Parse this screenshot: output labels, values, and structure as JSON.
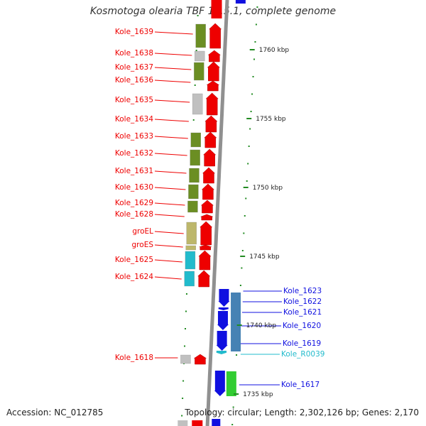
{
  "title": "Kosmotoga olearia TBF 19.5.1, complete genome",
  "accession": "Accession: NC_012785",
  "topology": "Topology: circular; Length: 2,302,126 bp; Genes: 2,170",
  "colors": {
    "forward": "#ee0000",
    "reverse": "#1010e0",
    "rna": "#22bbcc",
    "backbone": "#909090",
    "tick": "#228b22",
    "cog_olive": "#6b8e23",
    "cog_khaki": "#bdb76b",
    "cog_cyan": "#22bbcc",
    "cog_grey": "#c0c0c0",
    "cog_steel": "#4682b4",
    "cog_green": "#32cd32"
  },
  "scale_labels": [
    "1760 kbp",
    "1755 kbp",
    "1750 kbp",
    "1745 kbp",
    "1740 kbp",
    "1735 kbp"
  ],
  "forward_genes": [
    {
      "label": "Kole_1639",
      "cog": "cog_olive"
    },
    {
      "label": "Kole_1638",
      "cog": "cog_grey"
    },
    {
      "label": "Kole_1637",
      "cog": "cog_olive"
    },
    {
      "label": "Kole_1636",
      "cog": ""
    },
    {
      "label": "Kole_1635",
      "cog": "cog_grey"
    },
    {
      "label": "Kole_1634",
      "cog": ""
    },
    {
      "label": "Kole_1633",
      "cog": "cog_olive"
    },
    {
      "label": "Kole_1632",
      "cog": "cog_olive"
    },
    {
      "label": "Kole_1631",
      "cog": "cog_olive"
    },
    {
      "label": "Kole_1630",
      "cog": "cog_olive"
    },
    {
      "label": "Kole_1629",
      "cog": "cog_olive"
    },
    {
      "label": "Kole_1628",
      "cog": ""
    },
    {
      "label": "groEL",
      "cog": "cog_khaki"
    },
    {
      "label": "groES",
      "cog": "cog_khaki"
    },
    {
      "label": "Kole_1625",
      "cog": "cog_cyan"
    },
    {
      "label": "Kole_1624",
      "cog": "cog_cyan"
    },
    {
      "label": "Kole_1618",
      "cog": "cog_grey"
    }
  ],
  "reverse_genes": [
    {
      "label": "Kole_1623",
      "type": "cds"
    },
    {
      "label": "Kole_1622",
      "type": "cds"
    },
    {
      "label": "Kole_1621",
      "type": "cds"
    },
    {
      "label": "Kole_1620",
      "type": "cds"
    },
    {
      "label": "Kole_1619",
      "type": "cds"
    },
    {
      "label": "Kole_R0039",
      "type": "rna"
    },
    {
      "label": "Kole_1617",
      "type": "cds"
    }
  ]
}
